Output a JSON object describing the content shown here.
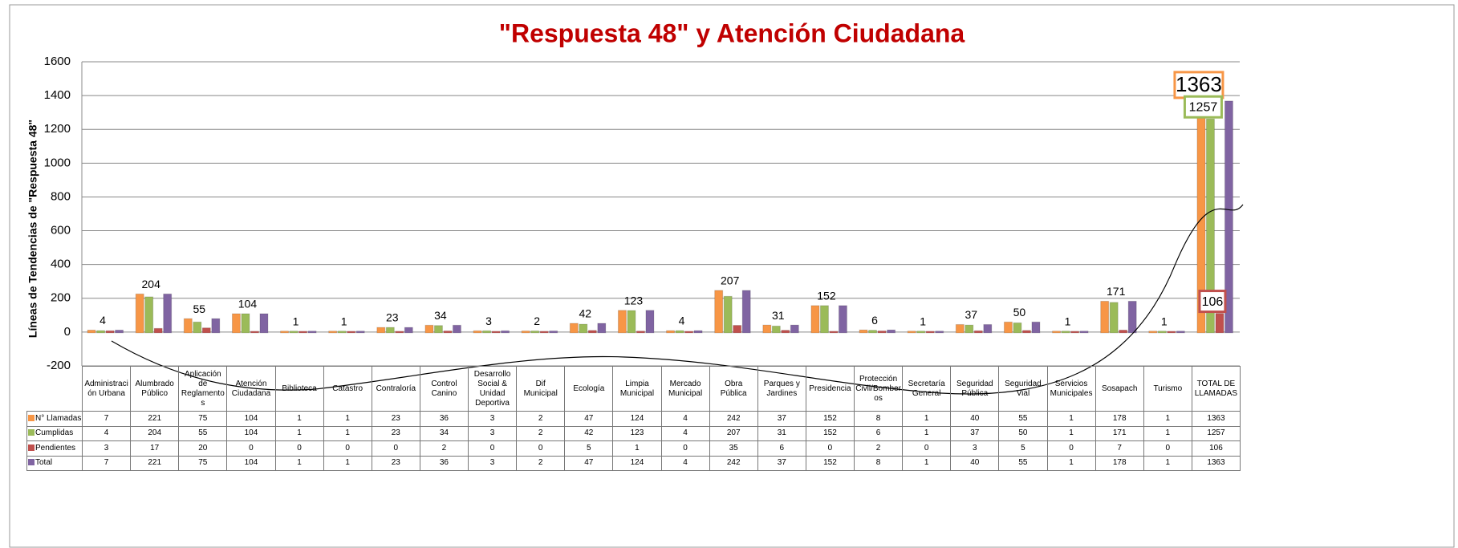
{
  "chart_data": {
    "type": "bar",
    "title": "\"Respuesta 48\" y Atención Ciudadana",
    "y_label": "Líneas de Tendencias de \"Respuesta  48\"",
    "categories": [
      "Administración Urbana",
      "Alumbrado Público",
      "Aplicación de Reglamentos",
      "Atención Ciudadana",
      "Biblioteca",
      "Catastro",
      "Contraloría",
      "Control Canino",
      "Desarrollo Social & Unidad Deportiva",
      "Dif Municipal",
      "Ecología",
      "Limpia Municipal",
      "Mercado Municipal",
      "Obra Pública",
      "Parques y Jardines",
      "Presidencia",
      "Protección Civil/Bomberos",
      "Secretaría General",
      "Seguridad Pública",
      "Seguridad Vial",
      "Servicios Municipales",
      "Sosapach",
      "Turismo",
      "TOTAL DE LLAMADAS"
    ],
    "series": [
      {
        "name": "N° Llamadas",
        "color": "#f79646",
        "values": [
          7,
          221,
          75,
          104,
          1,
          1,
          23,
          36,
          3,
          2,
          47,
          124,
          4,
          242,
          37,
          152,
          8,
          1,
          40,
          55,
          1,
          178,
          1,
          1363
        ]
      },
      {
        "name": "Cumplidas",
        "color": "#9bbb59",
        "values": [
          4,
          204,
          55,
          104,
          1,
          1,
          23,
          34,
          3,
          2,
          42,
          123,
          4,
          207,
          31,
          152,
          6,
          1,
          37,
          50,
          1,
          171,
          1,
          1257
        ]
      },
      {
        "name": "Pendientes",
        "color": "#c0504d",
        "values": [
          3,
          17,
          20,
          0,
          0,
          0,
          0,
          2,
          0,
          0,
          5,
          1,
          0,
          35,
          6,
          0,
          2,
          0,
          3,
          5,
          0,
          7,
          0,
          106
        ]
      },
      {
        "name": "Total",
        "color": "#8064a2",
        "values": [
          7,
          221,
          75,
          104,
          1,
          1,
          23,
          36,
          3,
          2,
          47,
          124,
          4,
          242,
          37,
          152,
          8,
          1,
          40,
          55,
          1,
          178,
          1,
          1363
        ]
      }
    ],
    "ylim": [
      -200,
      1600
    ],
    "yticks": [
      -200,
      0,
      200,
      400,
      600,
      800,
      1000,
      1200,
      1400,
      1600
    ],
    "grid": true
  }
}
